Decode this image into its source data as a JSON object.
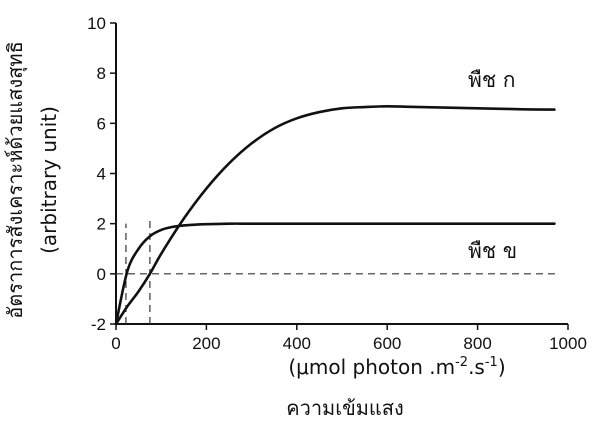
{
  "chart_data": {
    "type": "line",
    "xlabel_line1": "(μmol photon .m",
    "xlabel_sup1": "-2",
    "xlabel_mid": ".s",
    "xlabel_sup2": "-1",
    "xlabel_end": ")",
    "xlabel_line2": "ความเข้มแสง",
    "ylabel_line1": "อัตราการสังเคราะห์ด้วยแสงสุทธิ",
    "ylabel_line2": "(arbitrary unit)",
    "xlim": [
      0,
      1000
    ],
    "ylim": [
      -2,
      10
    ],
    "xticks": [
      0,
      200,
      400,
      600,
      800,
      1000
    ],
    "xtick_labels": [
      "0",
      "200",
      "400",
      "600",
      "800",
      "1000"
    ],
    "yticks": [
      -2,
      0,
      2,
      4,
      6,
      8,
      10
    ],
    "ytick_labels": [
      "-2",
      "0",
      "2",
      "4",
      "6",
      "8",
      "10"
    ],
    "grid": false,
    "zero_line": 0,
    "series": [
      {
        "name": "พืช ก",
        "x": [
          0,
          25,
          50,
          75,
          100,
          150,
          200,
          250,
          300,
          350,
          400,
          450,
          500,
          550,
          600,
          650,
          700,
          750,
          800,
          850,
          900,
          950,
          970
        ],
        "y": [
          -2,
          -1.3,
          -0.7,
          0.0,
          0.8,
          2.2,
          3.4,
          4.4,
          5.2,
          5.8,
          6.2,
          6.45,
          6.6,
          6.65,
          6.68,
          6.66,
          6.64,
          6.62,
          6.6,
          6.58,
          6.56,
          6.55,
          6.55
        ]
      },
      {
        "name": "พืช ข",
        "x": [
          0,
          25,
          50,
          75,
          100,
          125,
          150,
          175,
          200,
          250,
          300,
          400,
          500,
          600,
          700,
          800,
          900,
          970
        ],
        "y": [
          -2,
          0.1,
          1.0,
          1.5,
          1.75,
          1.87,
          1.93,
          1.96,
          1.98,
          2.0,
          2.0,
          2.0,
          2.0,
          2.0,
          2.0,
          2.0,
          2.0,
          2.0
        ]
      }
    ],
    "reference_lines": [
      {
        "x": 22,
        "y_from": -2,
        "y_to": 2
      },
      {
        "x": 75,
        "y_from": -2,
        "y_to": 2.2
      }
    ]
  }
}
